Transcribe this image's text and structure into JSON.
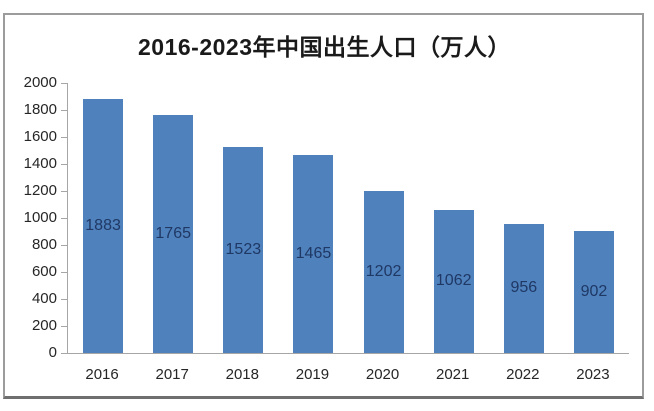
{
  "chart_data": {
    "type": "bar",
    "title": "2016-2023年中国出生人口（万人）",
    "categories": [
      "2016",
      "2017",
      "2018",
      "2019",
      "2020",
      "2021",
      "2022",
      "2023"
    ],
    "values": [
      1883,
      1765,
      1523,
      1465,
      1202,
      1062,
      956,
      902
    ],
    "xlabel": "",
    "ylabel": "",
    "ylim": [
      0,
      2000
    ],
    "ytick_step": 200,
    "ytick_labels": [
      "0",
      "200",
      "400",
      "600",
      "800",
      "1000",
      "1200",
      "1400",
      "1600",
      "1800",
      "2000"
    ],
    "grid": false,
    "legend": "none",
    "data_labels": "inside-center",
    "colors": {
      "bar_fill": "#4f81bd",
      "data_label": "#1f3864",
      "axis_line": "#a6a6a6",
      "axis_text": "#262626",
      "title_text": "#1a1a1a",
      "frame_border": "#9c9c9c"
    }
  }
}
